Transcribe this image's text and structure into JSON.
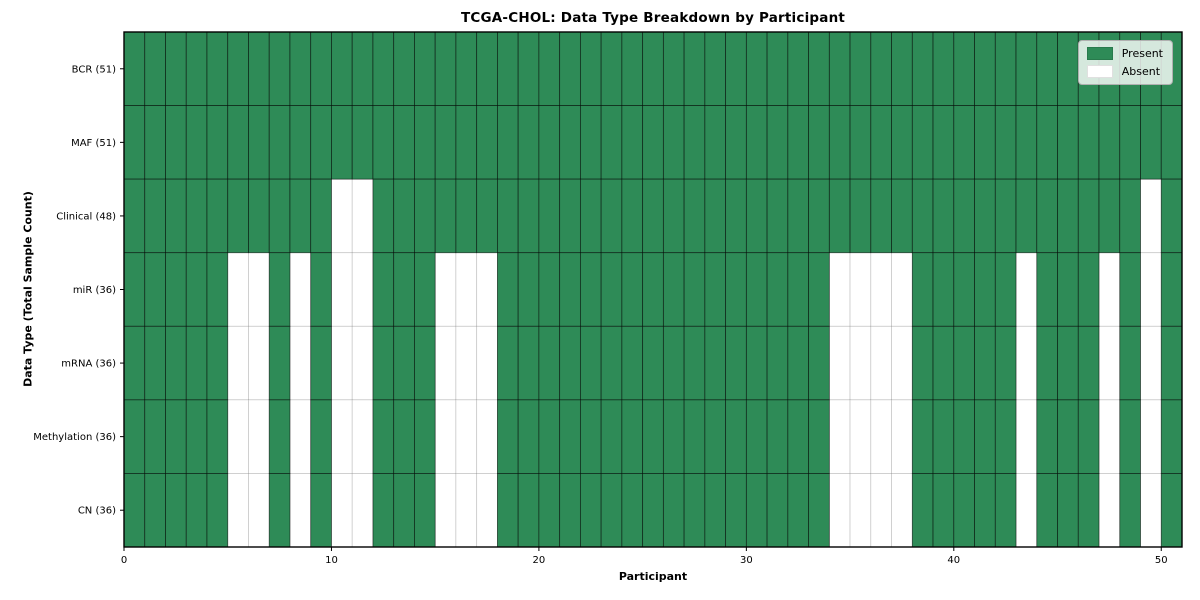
{
  "chart_data": {
    "type": "heatmap",
    "title": "TCGA-CHOL: Data Type Breakdown by Participant",
    "xlabel": "Participant",
    "ylabel": "Data Type (Total Sample Count)",
    "n_participants": 51,
    "x_ticks": [
      0,
      10,
      20,
      30,
      40,
      50
    ],
    "xlim": [
      0,
      51
    ],
    "grid": true,
    "legend_position": "upper right",
    "legend": [
      {
        "label": "Present",
        "color": "#2E8B57"
      },
      {
        "label": "Absent",
        "color": "#FFFFFF"
      }
    ],
    "colors": {
      "present": "#2E8B57",
      "absent": "#FFFFFF"
    },
    "rows": [
      {
        "label": "BCR (51)",
        "data_type": "BCR",
        "present_count": 51,
        "absent_participants": []
      },
      {
        "label": "MAF (51)",
        "data_type": "MAF",
        "present_count": 51,
        "absent_participants": []
      },
      {
        "label": "Clinical (48)",
        "data_type": "Clinical",
        "present_count": 48,
        "absent_participants": [
          10,
          11,
          49
        ]
      },
      {
        "label": "miR (36)",
        "data_type": "miR",
        "present_count": 36,
        "absent_participants": [
          5,
          6,
          8,
          10,
          11,
          15,
          16,
          17,
          34,
          35,
          36,
          37,
          43,
          47,
          49
        ]
      },
      {
        "label": "mRNA (36)",
        "data_type": "mRNA",
        "present_count": 36,
        "absent_participants": [
          5,
          6,
          8,
          10,
          11,
          15,
          16,
          17,
          34,
          35,
          36,
          37,
          43,
          47,
          49
        ]
      },
      {
        "label": "Methylation (36)",
        "data_type": "Methylation",
        "present_count": 36,
        "absent_participants": [
          5,
          6,
          8,
          10,
          11,
          15,
          16,
          17,
          34,
          35,
          36,
          37,
          43,
          47,
          49
        ]
      },
      {
        "label": "CN (36)",
        "data_type": "CN",
        "present_count": 36,
        "absent_participants": [
          5,
          6,
          8,
          10,
          11,
          15,
          16,
          17,
          34,
          35,
          36,
          37,
          43,
          47,
          49
        ]
      }
    ]
  }
}
